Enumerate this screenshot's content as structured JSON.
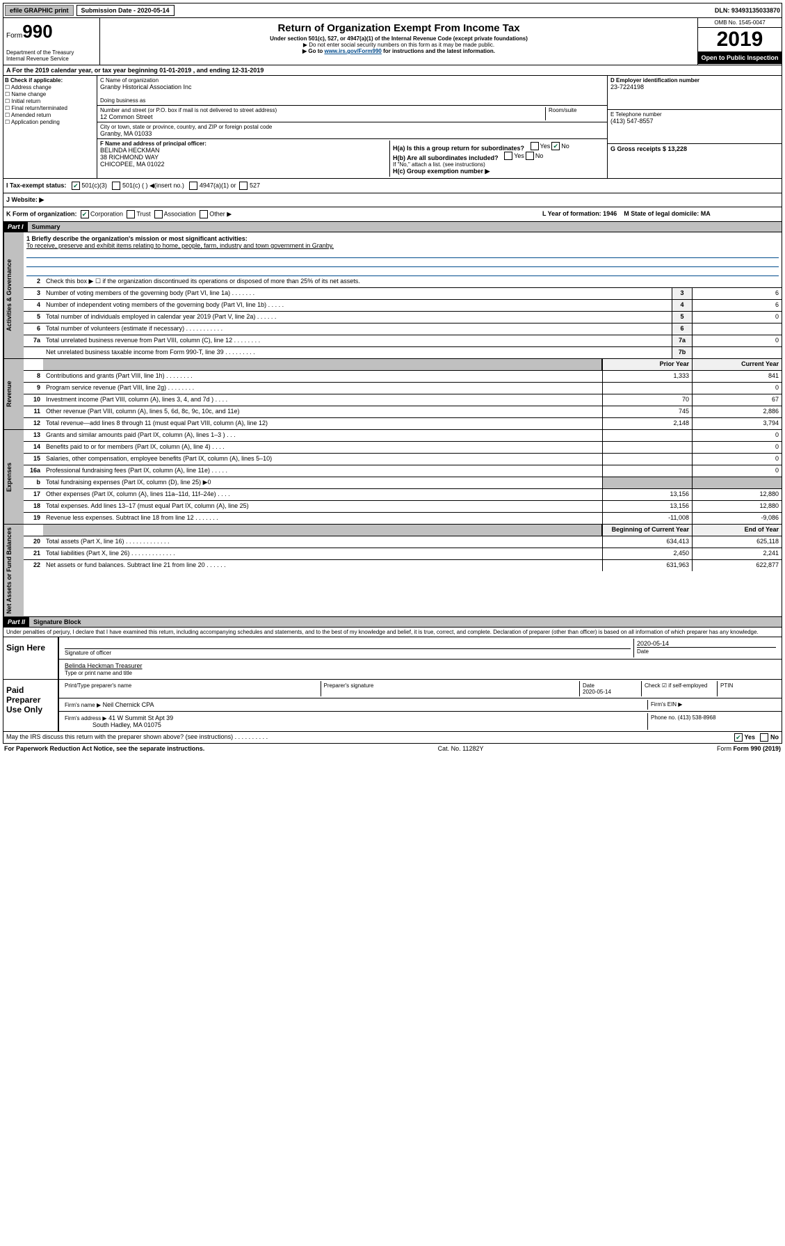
{
  "topbar": {
    "efile_label": "efile GRAPHIC print",
    "submission_label": "Submission Date - 2020-05-14",
    "dln_label": "DLN: 93493135033870"
  },
  "header": {
    "form_prefix": "Form",
    "form_number": "990",
    "title": "Return of Organization Exempt From Income Tax",
    "subtitle": "Under section 501(c), 527, or 4947(a)(1) of the Internal Revenue Code (except private foundations)",
    "note1": "▶ Do not enter social security numbers on this form as it may be made public.",
    "note2_pre": "▶ Go to ",
    "note2_link": "www.irs.gov/Form990",
    "note2_post": " for instructions and the latest information.",
    "dept1": "Department of the Treasury",
    "dept2": "Internal Revenue Service",
    "omb": "OMB No. 1545-0047",
    "year": "2019",
    "open": "Open to Public Inspection"
  },
  "period": {
    "text": "A For the 2019 calendar year, or tax year beginning 01-01-2019    , and ending 12-31-2019"
  },
  "section_b": {
    "label": "B Check if applicable:",
    "opts": [
      "Address change",
      "Name change",
      "Initial return",
      "Final return/terminated",
      "Amended return",
      "Application pending"
    ]
  },
  "section_c": {
    "name_label": "C Name of organization",
    "name": "Granby Historical Association Inc",
    "dba_label": "Doing business as",
    "addr_label": "Number and street (or P.O. box if mail is not delivered to street address)",
    "room_label": "Room/suite",
    "addr": "12 Common Street",
    "city_label": "City or town, state or province, country, and ZIP or foreign postal code",
    "city": "Granby, MA  01033",
    "officer_label": "F  Name and address of principal officer:",
    "officer_name": "BELINDA HECKMAN",
    "officer_addr1": "38 RICHMOND WAY",
    "officer_addr2": "CHICOPEE, MA  01022"
  },
  "section_d": {
    "ein_label": "D Employer identification number",
    "ein": "23-7224198",
    "phone_label": "E Telephone number",
    "phone": "(413) 547-8557",
    "gross_label": "G Gross receipts $ 13,228"
  },
  "section_h": {
    "ha": "H(a)  Is this a group return for subordinates?",
    "hb": "H(b)  Are all subordinates included?",
    "hb_note": "If \"No,\" attach a list. (see instructions)",
    "hc": "H(c)  Group exemption number ▶"
  },
  "status": {
    "i_label": "I  Tax-exempt status:",
    "i_501c3": "501(c)(3)",
    "i_501c": "501(c) (  ) ◀(insert no.)",
    "i_4947": "4947(a)(1) or",
    "i_527": "527",
    "j_label": "J  Website: ▶",
    "k_label": "K Form of organization:",
    "k_corp": "Corporation",
    "k_trust": "Trust",
    "k_assoc": "Association",
    "k_other": "Other ▶",
    "l_label": "L Year of formation: 1946",
    "m_label": "M State of legal domicile: MA"
  },
  "part1": {
    "header": "Part I",
    "title": "Summary",
    "mission_label": "1  Briefly describe the organization's mission or most significant activities:",
    "mission": "To receive, preserve and exhibit items relating to home, people, farm, industry and town government in Granby.",
    "line2": "Check this box ▶ ☐  if the organization discontinued its operations or disposed of more than 25% of its net assets.",
    "vtab_gov": "Activities & Governance",
    "vtab_rev": "Revenue",
    "vtab_exp": "Expenses",
    "vtab_net": "Net Assets or Fund Balances",
    "col_prior": "Prior Year",
    "col_current": "Current Year",
    "col_begin": "Beginning of Current Year",
    "col_end": "End of Year",
    "lines_gov": [
      {
        "n": "3",
        "d": "Number of voting members of the governing body (Part VI, line 1a)   .    .    .    .    .    .    .",
        "b": "3",
        "v": "6"
      },
      {
        "n": "4",
        "d": "Number of independent voting members of the governing body (Part VI, line 1b)   .    .    .    .    .",
        "b": "4",
        "v": "6"
      },
      {
        "n": "5",
        "d": "Total number of individuals employed in calendar year 2019 (Part V, line 2a)   .    .    .    .    .    .",
        "b": "5",
        "v": "0"
      },
      {
        "n": "6",
        "d": "Total number of volunteers (estimate if necessary)   .    .    .    .    .    .    .    .    .    .    .",
        "b": "6",
        "v": ""
      },
      {
        "n": "7a",
        "d": "Total unrelated business revenue from Part VIII, column (C), line 12   .    .    .    .    .    .    .    .",
        "b": "7a",
        "v": "0"
      },
      {
        "n": "",
        "d": "Net unrelated business taxable income from Form 990-T, line 39   .    .    .    .    .    .    .    .    .",
        "b": "7b",
        "v": ""
      }
    ],
    "lines_rev": [
      {
        "n": "8",
        "d": "Contributions and grants (Part VIII, line 1h)   .    .    .    .    .    .    .    .",
        "p": "1,333",
        "c": "841"
      },
      {
        "n": "9",
        "d": "Program service revenue (Part VIII, line 2g)   .    .    .    .    .    .    .    .",
        "p": "",
        "c": "0"
      },
      {
        "n": "10",
        "d": "Investment income (Part VIII, column (A), lines 3, 4, and 7d )   .    .    .    .",
        "p": "70",
        "c": "67"
      },
      {
        "n": "11",
        "d": "Other revenue (Part VIII, column (A), lines 5, 6d, 8c, 9c, 10c, and 11e)",
        "p": "745",
        "c": "2,886"
      },
      {
        "n": "12",
        "d": "Total revenue—add lines 8 through 11 (must equal Part VIII, column (A), line 12)",
        "p": "2,148",
        "c": "3,794"
      }
    ],
    "lines_exp": [
      {
        "n": "13",
        "d": "Grants and similar amounts paid (Part IX, column (A), lines 1–3 )   .    .    .",
        "p": "",
        "c": "0"
      },
      {
        "n": "14",
        "d": "Benefits paid to or for members (Part IX, column (A), line 4)   .    .    .    .",
        "p": "",
        "c": "0"
      },
      {
        "n": "15",
        "d": "Salaries, other compensation, employee benefits (Part IX, column (A), lines 5–10)",
        "p": "",
        "c": "0"
      },
      {
        "n": "16a",
        "d": "Professional fundraising fees (Part IX, column (A), line 11e)   .    .    .    .    .",
        "p": "",
        "c": "0"
      },
      {
        "n": "b",
        "d": "Total fundraising expenses (Part IX, column (D), line 25) ▶0",
        "p": "shade",
        "c": "shade"
      },
      {
        "n": "17",
        "d": "Other expenses (Part IX, column (A), lines 11a–11d, 11f–24e)   .    .    .    .",
        "p": "13,156",
        "c": "12,880"
      },
      {
        "n": "18",
        "d": "Total expenses. Add lines 13–17 (must equal Part IX, column (A), line 25)",
        "p": "13,156",
        "c": "12,880"
      },
      {
        "n": "19",
        "d": "Revenue less expenses. Subtract line 18 from line 12   .    .    .    .    .    .    .",
        "p": "-11,008",
        "c": "-9,086"
      }
    ],
    "lines_net": [
      {
        "n": "20",
        "d": "Total assets (Part X, line 16)   .    .    .    .    .    .    .    .    .    .    .    .    .",
        "p": "634,413",
        "c": "625,118"
      },
      {
        "n": "21",
        "d": "Total liabilities (Part X, line 26)   .    .    .    .    .    .    .    .    .    .    .    .    .",
        "p": "2,450",
        "c": "2,241"
      },
      {
        "n": "22",
        "d": "Net assets or fund balances. Subtract line 21 from line 20   .    .    .    .    .    .",
        "p": "631,963",
        "c": "622,877"
      }
    ]
  },
  "part2": {
    "header": "Part II",
    "title": "Signature Block",
    "perjury": "Under penalties of perjury, I declare that I have examined this return, including accompanying schedules and statements, and to the best of my knowledge and belief, it is true, correct, and complete. Declaration of preparer (other than officer) is based on all information of which preparer has any knowledge.",
    "sign_here": "Sign Here",
    "sig_officer": "Signature of officer",
    "sig_date": "2020-05-14",
    "date_label": "Date",
    "officer_name": "Belinda Heckman  Treasurer",
    "type_label": "Type or print name and title",
    "paid_prep": "Paid Preparer Use Only",
    "prep_name_label": "Print/Type preparer's name",
    "prep_sig_label": "Preparer's signature",
    "prep_date_label": "Date",
    "prep_date": "2020-05-14",
    "check_self": "Check ☑ if self-employed",
    "ptin_label": "PTIN",
    "firm_name_label": "Firm's name    ▶",
    "firm_name": "Neil Chernick CPA",
    "firm_ein_label": "Firm's EIN ▶",
    "firm_addr_label": "Firm's address ▶",
    "firm_addr1": "41 W Summit St Apt 39",
    "firm_addr2": "South Hadley, MA  01075",
    "firm_phone_label": "Phone no. (413) 538-8968",
    "discuss": "May the IRS discuss this return with the preparer shown above? (see instructions)   .    .    .    .    .    .    .    .    .    .",
    "yes": "Yes",
    "no": "No"
  },
  "footer": {
    "paperwork": "For Paperwork Reduction Act Notice, see the separate instructions.",
    "cat": "Cat. No. 11282Y",
    "form": "Form 990 (2019)"
  }
}
